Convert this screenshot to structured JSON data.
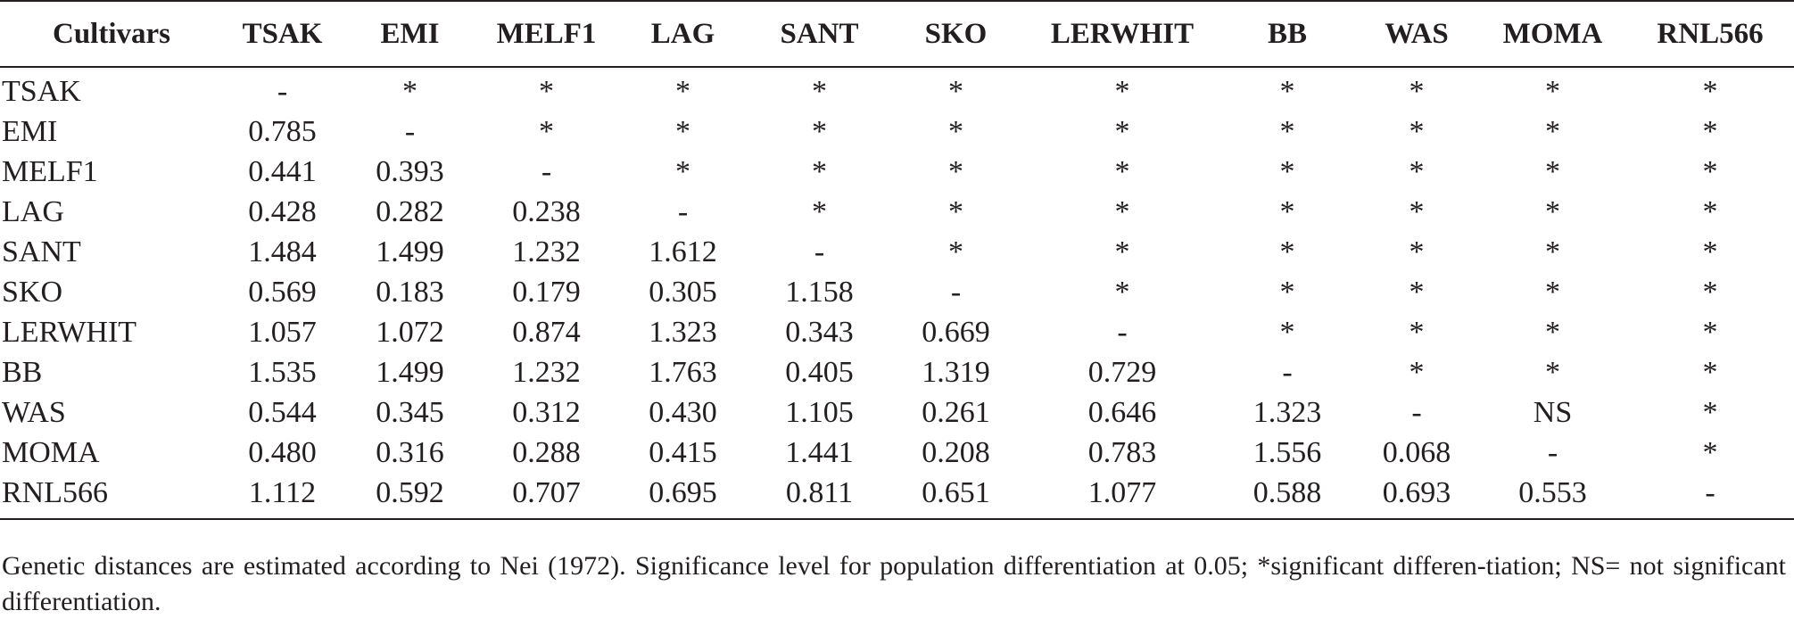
{
  "table": {
    "columns": [
      "Cultivars",
      "TSAK",
      "EMI",
      "MELF1",
      "LAG",
      "SANT",
      "SKO",
      "LERWHIT",
      "BB",
      "WAS",
      "MOMA",
      "RNL566"
    ],
    "rows": [
      [
        "TSAK",
        "-",
        "*",
        "*",
        "*",
        "*",
        "*",
        "*",
        "*",
        "*",
        "*",
        "*"
      ],
      [
        "EMI",
        "0.785",
        "-",
        "*",
        "*",
        "*",
        "*",
        "*",
        "*",
        "*",
        "*",
        "*"
      ],
      [
        "MELF1",
        "0.441",
        "0.393",
        "-",
        "*",
        "*",
        "*",
        "*",
        "*",
        "*",
        "*",
        "*"
      ],
      [
        "LAG",
        "0.428",
        "0.282",
        "0.238",
        "-",
        "*",
        "*",
        "*",
        "*",
        "*",
        "*",
        "*"
      ],
      [
        "SANT",
        "1.484",
        "1.499",
        "1.232",
        "1.612",
        "-",
        "*",
        "*",
        "*",
        "*",
        "*",
        "*"
      ],
      [
        "SKO",
        "0.569",
        "0.183",
        "0.179",
        "0.305",
        "1.158",
        "-",
        "*",
        "*",
        "*",
        "*",
        "*"
      ],
      [
        "LERWHIT",
        "1.057",
        "1.072",
        "0.874",
        "1.323",
        "0.343",
        "0.669",
        "-",
        "*",
        "*",
        "*",
        "*"
      ],
      [
        "BB",
        "1.535",
        "1.499",
        "1.232",
        "1.763",
        "0.405",
        "1.319",
        "0.729",
        "-",
        "*",
        "*",
        "*"
      ],
      [
        "WAS",
        "0.544",
        "0.345",
        "0.312",
        "0.430",
        "1.105",
        "0.261",
        "0.646",
        "1.323",
        "-",
        "NS",
        "*"
      ],
      [
        "MOMA",
        "0.480",
        "0.316",
        "0.288",
        "0.415",
        "1.441",
        "0.208",
        "0.783",
        "1.556",
        "0.068",
        "-",
        "*"
      ],
      [
        "RNL566",
        "1.112",
        "0.592",
        "0.707",
        "0.695",
        "0.811",
        "0.651",
        "1.077",
        "0.588",
        "0.693",
        "0.553",
        "-"
      ]
    ]
  },
  "footnote": "Genetic distances are estimated according to Nei (1972). Significance level for population differentiation at 0.05; *significant differen-tiation; NS= not significant differentiation."
}
